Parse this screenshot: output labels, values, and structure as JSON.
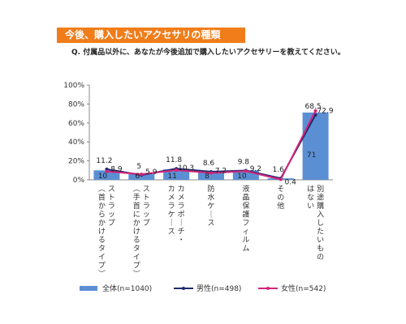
{
  "header": {
    "title": "今後、購入したいアクセサリの種類",
    "question": "Q. 付属品以外に、あなたが今後追加で購入したいアクセサリーを教えてください。"
  },
  "chart_data": {
    "type": "bar",
    "categories": [
      "ストラップ（首からかけるタイプ）",
      "ストラップ（手首にかけるタイプ）",
      "カメラポーチ・カメラケース",
      "防水ケース",
      "液晶保護フィルム",
      "その他",
      "別途購入したいものはない"
    ],
    "series": [
      {
        "name": "全体(n=1040)",
        "kind": "bar",
        "color": "#5b8fd4",
        "values": [
          10,
          6,
          11,
          8,
          10,
          1.6,
          71
        ]
      },
      {
        "name": "男性(n=498)",
        "kind": "line",
        "color": "#1f2a6e",
        "values": [
          11.2,
          5,
          11.8,
          8.6,
          9.8,
          1.6,
          68.5
        ]
      },
      {
        "name": "女性(n=542)",
        "kind": "line",
        "color": "#d4247a",
        "values": [
          8.9,
          5.9,
          10.3,
          7.2,
          9.2,
          0.4,
          72.9
        ]
      }
    ],
    "bar_labels": [
      "10",
      "6",
      "11",
      "8",
      "10",
      "",
      "71"
    ],
    "male_labels": [
      "11.2",
      "5",
      "11.8",
      "8.6",
      "9.8",
      "1.6",
      "68.5"
    ],
    "female_labels": [
      "8.9",
      "5.9",
      "10.3",
      "7.2",
      "9.2",
      "0.4",
      "72.9"
    ],
    "yticks": [
      "0%",
      "20%",
      "40%",
      "60%",
      "80%",
      "100%"
    ],
    "ylim": [
      0,
      100
    ],
    "grid": false,
    "legend_position": "bottom"
  }
}
